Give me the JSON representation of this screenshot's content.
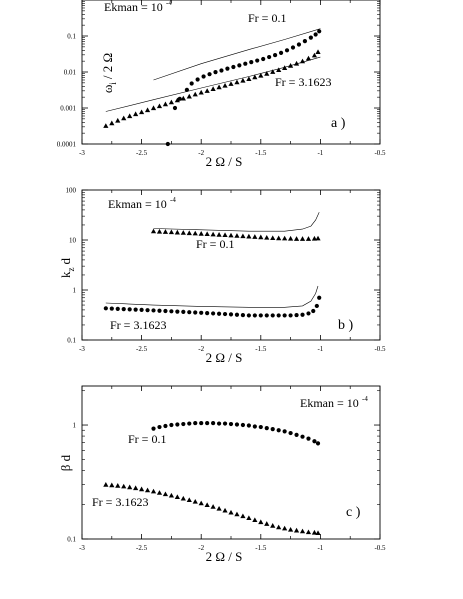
{
  "chart_data": [
    {
      "type": "scatter",
      "panel_label": "a )",
      "xlabel": "2 Ω / S",
      "ylabel": "ω",
      "ylabel_sub": "i",
      "ylabel_tail": "/ 2 Ω",
      "xlim": [
        -3,
        -0.5
      ],
      "ylim": [
        0.0001,
        1
      ],
      "yscale": "log",
      "xticks": [
        "-3",
        "-2.5",
        "-2",
        "-1.5",
        "-1",
        "-0.5"
      ],
      "yticks": [
        "0.0001",
        "0.001",
        "0.01",
        "0.1"
      ],
      "annotations": {
        "ekman_base": "Ekman = 10",
        "ekman_exp": "-4",
        "fr_a": "Fr = 0.1",
        "fr_b": "Fr = 3.1623"
      },
      "series": [
        {
          "marker": "circle",
          "x": [
            -2.28,
            -2.22,
            -2.18,
            -2.12,
            -2.08,
            -2.03,
            -1.98,
            -1.93,
            -1.88,
            -1.83,
            -1.78,
            -1.73,
            -1.68,
            -1.63,
            -1.58,
            -1.53,
            -1.48,
            -1.43,
            -1.38,
            -1.33,
            -1.28,
            -1.23,
            -1.18,
            -1.13,
            -1.08,
            -1.04,
            -1.01
          ],
          "y": [
            0.0001,
            0.001,
            0.0018,
            0.0032,
            0.0048,
            0.0062,
            0.0075,
            0.0087,
            0.0099,
            0.011,
            0.0124,
            0.0138,
            0.0153,
            0.017,
            0.0188,
            0.0208,
            0.023,
            0.026,
            0.0295,
            0.034,
            0.04,
            0.048,
            0.058,
            0.072,
            0.09,
            0.11,
            0.135
          ]
        },
        {
          "marker": "triangle",
          "x": [
            -2.8,
            -2.75,
            -2.7,
            -2.65,
            -2.6,
            -2.55,
            -2.5,
            -2.45,
            -2.4,
            -2.35,
            -2.3,
            -2.25,
            -2.2,
            -2.15,
            -2.1,
            -2.05,
            -2.0,
            -1.95,
            -1.9,
            -1.85,
            -1.8,
            -1.75,
            -1.7,
            -1.65,
            -1.6,
            -1.55,
            -1.5,
            -1.45,
            -1.4,
            -1.35,
            -1.3,
            -1.25,
            -1.2,
            -1.15,
            -1.1,
            -1.05,
            -1.02
          ],
          "y": [
            0.00032,
            0.00038,
            0.00045,
            0.00052,
            0.0006,
            0.00068,
            0.00077,
            0.00088,
            0.001,
            0.00113,
            0.00128,
            0.00145,
            0.00165,
            0.00185,
            0.0021,
            0.0024,
            0.0027,
            0.003,
            0.0034,
            0.0038,
            0.0042,
            0.0047,
            0.0052,
            0.0058,
            0.0064,
            0.0072,
            0.008,
            0.009,
            0.0101,
            0.0114,
            0.013,
            0.015,
            0.0172,
            0.02,
            0.024,
            0.029,
            0.036
          ]
        },
        {
          "marker": "line",
          "x": [
            -2.4,
            -2.0,
            -1.6,
            -1.3,
            -1.0
          ],
          "y": [
            0.006,
            0.017,
            0.042,
            0.08,
            0.16
          ]
        },
        {
          "marker": "line",
          "x": [
            -2.8,
            -2.4,
            -2.0,
            -1.6,
            -1.3,
            -1.0
          ],
          "y": [
            0.0008,
            0.0017,
            0.0036,
            0.0075,
            0.0135,
            0.026
          ]
        }
      ]
    },
    {
      "type": "scatter",
      "panel_label": "b )",
      "xlabel": "2 Ω / S",
      "ylabel": "k",
      "ylabel_sub": "z",
      "ylabel_tail": "d",
      "xlim": [
        -3,
        -0.5
      ],
      "ylim": [
        0.1,
        100
      ],
      "yscale": "log",
      "xticks": [
        "-3",
        "-2.5",
        "-2",
        "-1.5",
        "-1",
        "-0.5"
      ],
      "yticks": [
        "0.1",
        "1",
        "10",
        "100"
      ],
      "annotations": {
        "ekman_base": "Ekman = 10",
        "ekman_exp": "-4",
        "fr_a": "Fr = 0.1",
        "fr_b": "Fr = 3.1623"
      },
      "series": [
        {
          "marker": "triangle",
          "x": [
            -2.4,
            -2.35,
            -2.3,
            -2.25,
            -2.2,
            -2.15,
            -2.1,
            -2.05,
            -2.0,
            -1.95,
            -1.9,
            -1.85,
            -1.8,
            -1.75,
            -1.7,
            -1.65,
            -1.6,
            -1.55,
            -1.5,
            -1.45,
            -1.4,
            -1.35,
            -1.3,
            -1.25,
            -1.2,
            -1.15,
            -1.1,
            -1.05,
            -1.02
          ],
          "y": [
            15,
            14.8,
            14.6,
            14.4,
            14.2,
            14.0,
            13.8,
            13.6,
            13.4,
            13.2,
            13.0,
            12.8,
            12.6,
            12.4,
            12.2,
            12.0,
            11.8,
            11.6,
            11.4,
            11.2,
            11.0,
            10.9,
            10.8,
            10.7,
            10.6,
            10.6,
            10.6,
            10.7,
            10.8
          ]
        },
        {
          "marker": "circle",
          "x": [
            -2.8,
            -2.75,
            -2.7,
            -2.65,
            -2.6,
            -2.55,
            -2.5,
            -2.45,
            -2.4,
            -2.35,
            -2.3,
            -2.25,
            -2.2,
            -2.15,
            -2.1,
            -2.05,
            -2.0,
            -1.95,
            -1.9,
            -1.85,
            -1.8,
            -1.75,
            -1.7,
            -1.65,
            -1.6,
            -1.55,
            -1.5,
            -1.45,
            -1.4,
            -1.35,
            -1.3,
            -1.25,
            -1.2,
            -1.15,
            -1.1,
            -1.06,
            -1.03,
            -1.01
          ],
          "y": [
            0.43,
            0.425,
            0.42,
            0.415,
            0.41,
            0.405,
            0.4,
            0.395,
            0.39,
            0.385,
            0.38,
            0.375,
            0.37,
            0.365,
            0.36,
            0.355,
            0.35,
            0.345,
            0.34,
            0.335,
            0.33,
            0.325,
            0.32,
            0.315,
            0.31,
            0.31,
            0.31,
            0.31,
            0.31,
            0.31,
            0.31,
            0.31,
            0.315,
            0.32,
            0.34,
            0.38,
            0.48,
            0.7
          ]
        },
        {
          "marker": "line",
          "x": [
            -2.4,
            -2.0,
            -1.6,
            -1.3,
            -1.15,
            -1.08,
            -1.04,
            -1.01
          ],
          "y": [
            17,
            16,
            15,
            15,
            16.5,
            19,
            25,
            36
          ]
        },
        {
          "marker": "line",
          "x": [
            -2.8,
            -2.4,
            -2.0,
            -1.6,
            -1.3,
            -1.15,
            -1.08,
            -1.04,
            -1.02
          ],
          "y": [
            0.55,
            0.5,
            0.47,
            0.45,
            0.45,
            0.48,
            0.6,
            0.85,
            1.2
          ]
        }
      ]
    },
    {
      "type": "scatter",
      "panel_label": "c )",
      "xlabel": "2 Ω / S",
      "ylabel": "β d",
      "ylabel_sub": "",
      "ylabel_tail": "",
      "xlim": [
        -3,
        -0.5
      ],
      "ylim": [
        0.1,
        2.2
      ],
      "yscale": "log",
      "xticks": [
        "-3",
        "-2.5",
        "-2",
        "-1.5",
        "-1",
        "-0.5"
      ],
      "yticks": [
        "0.1",
        "1"
      ],
      "annotations": {
        "ekman_base": "Ekman = 10",
        "ekman_exp": "-4",
        "fr_a": "Fr = 0.1",
        "fr_b": "Fr = 3.1623"
      },
      "series": [
        {
          "marker": "circle",
          "x": [
            -2.4,
            -2.35,
            -2.3,
            -2.25,
            -2.2,
            -2.15,
            -2.1,
            -2.05,
            -2.0,
            -1.95,
            -1.9,
            -1.85,
            -1.8,
            -1.75,
            -1.7,
            -1.65,
            -1.6,
            -1.55,
            -1.5,
            -1.45,
            -1.4,
            -1.35,
            -1.3,
            -1.25,
            -1.2,
            -1.15,
            -1.1,
            -1.05,
            -1.02
          ],
          "y": [
            0.93,
            0.96,
            0.98,
            1.0,
            1.01,
            1.02,
            1.03,
            1.04,
            1.04,
            1.04,
            1.04,
            1.03,
            1.03,
            1.02,
            1.01,
            1.0,
            0.99,
            0.97,
            0.96,
            0.94,
            0.92,
            0.9,
            0.88,
            0.85,
            0.82,
            0.79,
            0.76,
            0.72,
            0.69
          ]
        },
        {
          "marker": "triangle",
          "x": [
            -2.8,
            -2.75,
            -2.7,
            -2.65,
            -2.6,
            -2.55,
            -2.5,
            -2.45,
            -2.4,
            -2.35,
            -2.3,
            -2.25,
            -2.2,
            -2.15,
            -2.1,
            -2.05,
            -2.0,
            -1.95,
            -1.9,
            -1.85,
            -1.8,
            -1.75,
            -1.7,
            -1.65,
            -1.6,
            -1.55,
            -1.5,
            -1.45,
            -1.4,
            -1.35,
            -1.3,
            -1.25,
            -1.2,
            -1.15,
            -1.1,
            -1.05,
            -1.02
          ],
          "y": [
            0.3,
            0.297,
            0.294,
            0.29,
            0.285,
            0.28,
            0.274,
            0.268,
            0.262,
            0.255,
            0.248,
            0.241,
            0.234,
            0.227,
            0.22,
            0.213,
            0.206,
            0.199,
            0.192,
            0.185,
            0.178,
            0.171,
            0.165,
            0.159,
            0.153,
            0.147,
            0.141,
            0.136,
            0.131,
            0.127,
            0.124,
            0.121,
            0.119,
            0.117,
            0.115,
            0.114,
            0.113
          ]
        }
      ]
    }
  ]
}
